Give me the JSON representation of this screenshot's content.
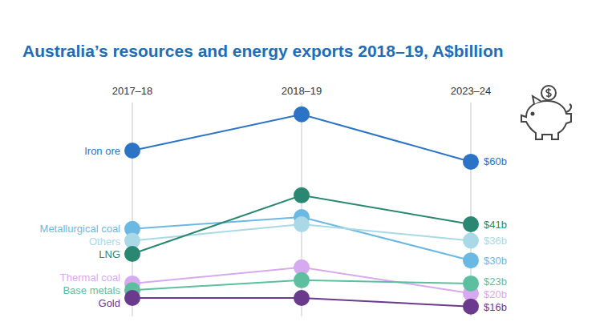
{
  "chart_data": {
    "type": "line",
    "title": "Australia’s resources and energy exports 2018–19, A$billion",
    "categories": [
      "2017–18",
      "2018–19",
      "2023–24"
    ],
    "ylim": [
      13,
      78
    ],
    "tick_labels": false,
    "grid": false,
    "marker": "circle",
    "data_labels": true,
    "series": [
      {
        "name": "Iron ore",
        "color": "#2b73c4",
        "values": [
          63.4,
          74.4,
          60
        ],
        "value_labels": [
          null,
          null,
          "$60b"
        ]
      },
      {
        "name": "Metallurgical coal",
        "color": "#6bb9e3",
        "values": [
          39.6,
          43.2,
          30
        ],
        "value_labels": [
          null,
          null,
          "$30b"
        ]
      },
      {
        "name": "Others",
        "color": "#a9d9e6",
        "values": [
          36,
          41,
          36
        ],
        "value_labels": [
          null,
          null,
          "$36b"
        ]
      },
      {
        "name": "LNG",
        "color": "#2a8872",
        "values": [
          32,
          49.8,
          41
        ],
        "value_labels": [
          null,
          null,
          "$41b"
        ]
      },
      {
        "name": "Thermal coal",
        "color": "#d7a9f0",
        "values": [
          23,
          27.9,
          20
        ],
        "value_labels": [
          null,
          null,
          "$20b"
        ]
      },
      {
        "name": "Base metals",
        "color": "#5cbf9f",
        "values": [
          21,
          24,
          23
        ],
        "value_labels": [
          null,
          null,
          "$23b"
        ]
      },
      {
        "name": "Gold",
        "color": "#6a3b8c",
        "values": [
          18.6,
          18.6,
          16
        ],
        "value_labels": [
          null,
          null,
          "$16b"
        ]
      }
    ]
  }
}
